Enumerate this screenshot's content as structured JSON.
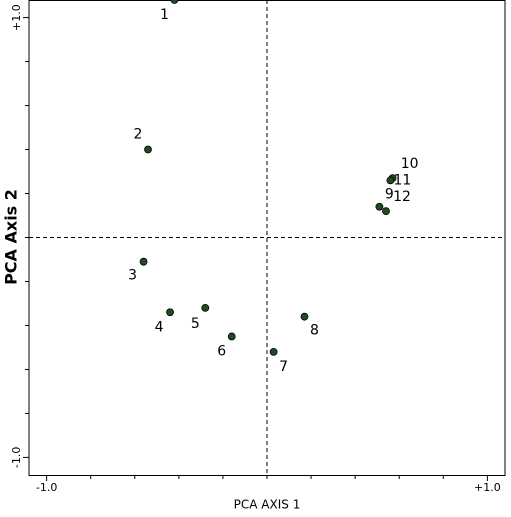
{
  "chart_data": {
    "type": "scatter",
    "xlabel": "PCA AXIS 1",
    "ylabel": "PCA Axis 2",
    "labels": [
      "1",
      "2",
      "3",
      "4",
      "5",
      "6",
      "7",
      "8",
      "9",
      "10",
      "11",
      "12"
    ],
    "x": [
      -0.42,
      -0.54,
      -0.56,
      -0.44,
      -0.28,
      -0.16,
      0.03,
      0.17,
      0.51,
      0.57,
      0.56,
      0.54
    ],
    "values": [
      1.08,
      0.4,
      -0.11,
      -0.34,
      -0.32,
      -0.45,
      -0.52,
      -0.36,
      0.14,
      0.27,
      0.26,
      0.12
    ],
    "color": "#1f4d1f",
    "xlim": [
      -1.08,
      1.08
    ],
    "ylim": [
      -1.08,
      1.08
    ],
    "xticks": [
      {
        "value": -1,
        "label": "-1.0"
      },
      {
        "value": 1,
        "label": "+1.0"
      }
    ],
    "yticks": [
      {
        "value": 1,
        "label": "+1.0"
      },
      {
        "value": -1,
        "label": "-1.0"
      }
    ],
    "xminor": [
      -0.8,
      -0.6,
      -0.4,
      -0.2,
      0,
      0.2,
      0.4,
      0.6,
      0.8
    ],
    "yminor": [
      -0.8,
      -0.6,
      -0.4,
      -0.2,
      0,
      0.2,
      0.4,
      0.6,
      0.8
    ]
  }
}
